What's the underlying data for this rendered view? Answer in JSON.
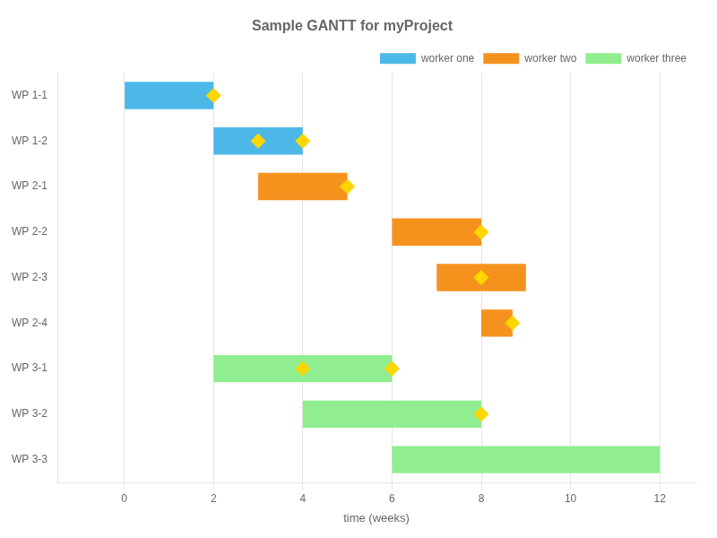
{
  "chart_data": {
    "type": "gantt",
    "title": "Sample GANTT for myProject",
    "xlabel": "time (weeks)",
    "orientation": "horizontal",
    "categories": [
      "WP 1-1",
      "WP 1-2",
      "WP 2-1",
      "WP 2-2",
      "WP 2-3",
      "WP 2-4",
      "WP 3-1",
      "WP 3-2",
      "WP 3-3"
    ],
    "series": [
      {
        "name": "worker one",
        "color": "#4db8e8",
        "values": [
          [
            0,
            2
          ],
          [
            2,
            4
          ],
          null,
          null,
          null,
          null,
          null,
          null,
          null
        ]
      },
      {
        "name": "worker two",
        "color": "#f5921e",
        "values": [
          null,
          null,
          [
            3,
            5
          ],
          [
            6,
            8
          ],
          [
            7,
            9
          ],
          [
            8,
            8.7
          ],
          null,
          null,
          null
        ]
      },
      {
        "name": "worker three",
        "color": "#90ee90",
        "values": [
          null,
          null,
          null,
          null,
          null,
          null,
          [
            2,
            6
          ],
          [
            4,
            8
          ],
          [
            6,
            12
          ]
        ]
      },
      {
        "type": "scatter",
        "marker": "diamond",
        "color": "#FFD700",
        "values": [
          [
            2
          ],
          [
            3,
            4
          ],
          [
            5
          ],
          [
            8
          ],
          [
            8
          ],
          [
            8.7
          ],
          [
            4,
            6
          ],
          [
            8
          ],
          []
        ]
      }
    ],
    "xlim": [
      -1.5,
      12.8
    ],
    "xticks": [
      0,
      2,
      4,
      6,
      8,
      10,
      12
    ],
    "grid": "x",
    "legend": "upper right"
  }
}
